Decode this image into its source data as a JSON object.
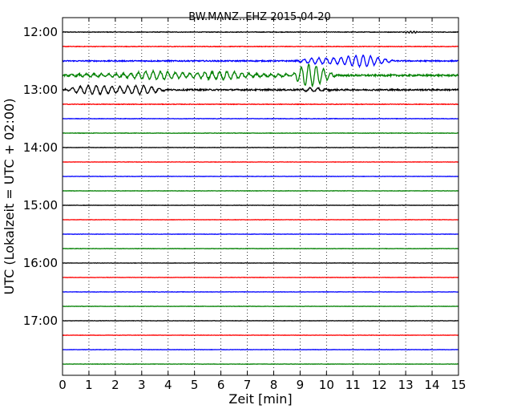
{
  "chart_data": {
    "type": "line",
    "title": "BW.MANZ..EHZ 2015-04-20",
    "xlabel": "Zeit  [min]",
    "ylabel": "UTC (Lokalzeit = UTC + 02:00)",
    "xlim": [
      0,
      15
    ],
    "x_ticks": [
      "0",
      "1",
      "2",
      "3",
      "4",
      "5",
      "6",
      "7",
      "8",
      "9",
      "10",
      "11",
      "12",
      "13",
      "14",
      "15"
    ],
    "y_tick_labels": [
      "12:00",
      "13:00",
      "14:00",
      "15:00",
      "16:00",
      "17:00"
    ],
    "grid": true,
    "trace_colors": [
      "#000000",
      "#ff0000",
      "#0000ff",
      "#008000"
    ],
    "traces": [
      {
        "start": "12:00",
        "color": "#000000",
        "amplitude": 0.02
      },
      {
        "start": "12:15",
        "color": "#ff0000",
        "amplitude": 0.02
      },
      {
        "start": "12:30",
        "color": "#0000ff",
        "amplitude": 0.04
      },
      {
        "start": "12:45",
        "color": "#008000",
        "amplitude": 0.06
      },
      {
        "start": "13:00",
        "color": "#000000",
        "amplitude": 0.05
      },
      {
        "start": "13:15",
        "color": "#ff0000",
        "amplitude": 0.02
      },
      {
        "start": "13:30",
        "color": "#0000ff",
        "amplitude": 0.015
      },
      {
        "start": "13:45",
        "color": "#008000",
        "amplitude": 0.015
      },
      {
        "start": "14:00",
        "color": "#000000",
        "amplitude": 0.012
      },
      {
        "start": "14:15",
        "color": "#ff0000",
        "amplitude": 0.012
      },
      {
        "start": "14:30",
        "color": "#0000ff",
        "amplitude": 0.012
      },
      {
        "start": "14:45",
        "color": "#008000",
        "amplitude": 0.012
      },
      {
        "start": "15:00",
        "color": "#000000",
        "amplitude": 0.012
      },
      {
        "start": "15:15",
        "color": "#ff0000",
        "amplitude": 0.012
      },
      {
        "start": "15:30",
        "color": "#0000ff",
        "amplitude": 0.012
      },
      {
        "start": "15:45",
        "color": "#008000",
        "amplitude": 0.012
      },
      {
        "start": "16:00",
        "color": "#000000",
        "amplitude": 0.012
      },
      {
        "start": "16:15",
        "color": "#ff0000",
        "amplitude": 0.012
      },
      {
        "start": "16:30",
        "color": "#0000ff",
        "amplitude": 0.012
      },
      {
        "start": "16:45",
        "color": "#008000",
        "amplitude": 0.012
      },
      {
        "start": "17:00",
        "color": "#000000",
        "amplitude": 0.012
      },
      {
        "start": "17:15",
        "color": "#ff0000",
        "amplitude": 0.012
      },
      {
        "start": "17:30",
        "color": "#0000ff",
        "amplitude": 0.012
      },
      {
        "start": "17:45",
        "color": "#008000",
        "amplitude": 0.012
      }
    ],
    "events": [
      {
        "trace": "12:00",
        "start_min": 12.8,
        "end_min": 14.0,
        "amplitude": 0.12,
        "period_min": 0.12
      },
      {
        "trace": "12:30",
        "start_min": 8.8,
        "end_min": 15.0,
        "amplitude": 0.45,
        "period_min": 0.28
      },
      {
        "trace": "12:45",
        "start_min": 0.0,
        "end_min": 15.0,
        "amplitude": 0.3,
        "period_min": 0.28
      },
      {
        "trace": "12:45",
        "start_min": 8.7,
        "end_min": 11.4,
        "amplitude": 0.9,
        "period_min": 0.28
      },
      {
        "trace": "13:00",
        "start_min": 0.0,
        "end_min": 6.5,
        "amplitude": 0.45,
        "period_min": 0.3
      },
      {
        "trace": "13:00",
        "start_min": 9.0,
        "end_min": 11.0,
        "amplitude": 0.2,
        "period_min": 0.3
      }
    ]
  }
}
